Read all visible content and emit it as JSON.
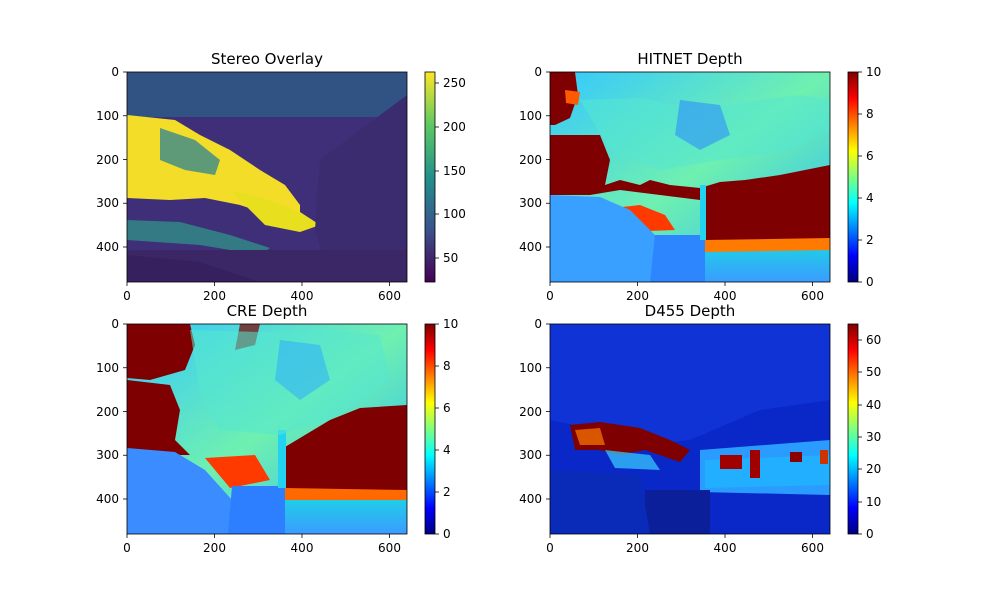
{
  "chart_data": [
    {
      "type": "heatmap",
      "title": "Stereo Overlay",
      "xlabel": "",
      "ylabel": "",
      "xlim": [
        0,
        640
      ],
      "ylim": [
        480,
        0
      ],
      "xticks": [
        0,
        200,
        400,
        600
      ],
      "yticks": [
        0,
        100,
        200,
        300,
        400
      ],
      "colormap": "viridis",
      "colorbar": {
        "min": 15,
        "max": 255,
        "ticks": [
          50,
          100,
          150,
          200,
          250
        ]
      }
    },
    {
      "type": "heatmap",
      "title": "HITNET Depth",
      "xlabel": "",
      "ylabel": "",
      "xlim": [
        0,
        640
      ],
      "ylim": [
        480,
        0
      ],
      "xticks": [
        0,
        200,
        400,
        600
      ],
      "yticks": [
        0,
        100,
        200,
        300,
        400
      ],
      "colormap": "jet",
      "colorbar": {
        "min": 0,
        "max": 10,
        "ticks": [
          0,
          2,
          4,
          6,
          8,
          10
        ]
      }
    },
    {
      "type": "heatmap",
      "title": "CRE Depth",
      "xlabel": "",
      "ylabel": "",
      "xlim": [
        0,
        640
      ],
      "ylim": [
        480,
        0
      ],
      "xticks": [
        0,
        200,
        400,
        600
      ],
      "yticks": [
        0,
        100,
        200,
        300,
        400
      ],
      "colormap": "jet",
      "colorbar": {
        "min": 0,
        "max": 10,
        "ticks": [
          0,
          2,
          4,
          6,
          8,
          10
        ]
      }
    },
    {
      "type": "heatmap",
      "title": "D455 Depth",
      "xlabel": "",
      "ylabel": "",
      "xlim": [
        0,
        640
      ],
      "ylim": [
        480,
        0
      ],
      "xticks": [
        0,
        200,
        400,
        600
      ],
      "yticks": [
        0,
        100,
        200,
        300,
        400
      ],
      "colormap": "jet",
      "colorbar": {
        "min": 0,
        "max": 65,
        "ticks": [
          0,
          10,
          20,
          30,
          40,
          50,
          60
        ]
      }
    }
  ]
}
